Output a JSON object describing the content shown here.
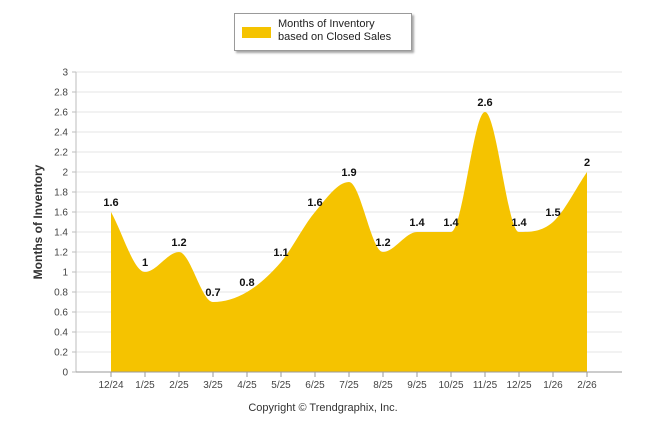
{
  "chart_data": {
    "type": "area",
    "title": "",
    "xlabel": "",
    "ylabel": "Months of Inventory",
    "ylim": [
      0,
      3
    ],
    "y_ticks": [
      "0",
      "0.2",
      "0.4",
      "0.6",
      "0.8",
      "1",
      "1.2",
      "1.4",
      "1.6",
      "1.8",
      "2",
      "2.2",
      "2.4",
      "2.6",
      "2.8",
      "3"
    ],
    "categories": [
      "12/24",
      "1/25",
      "2/25",
      "3/25",
      "4/25",
      "5/25",
      "6/25",
      "7/25",
      "8/25",
      "9/25",
      "10/25",
      "11/25",
      "12/25",
      "1/26",
      "2/26"
    ],
    "series": [
      {
        "name": "Months of Inventory based on Closed Sales",
        "color": "#f5c300",
        "values": [
          1.6,
          1,
          1.2,
          0.7,
          0.8,
          1.1,
          1.6,
          1.9,
          1.2,
          1.4,
          1.4,
          2.6,
          1.4,
          1.5,
          2
        ],
        "labels": [
          "1.6",
          "1",
          "1.2",
          "0.7",
          "0.8",
          "1.1",
          "1.6",
          "1.9",
          "1.2",
          "1.4",
          "1.4",
          "2.6",
          "1.4",
          "1.5",
          "2"
        ]
      }
    ],
    "legend": {
      "position": "top-center",
      "label": "Months of Inventory based on Closed Sales"
    },
    "grid": true
  },
  "footer": {
    "copyright": "Copyright © Trendgraphix, Inc."
  }
}
